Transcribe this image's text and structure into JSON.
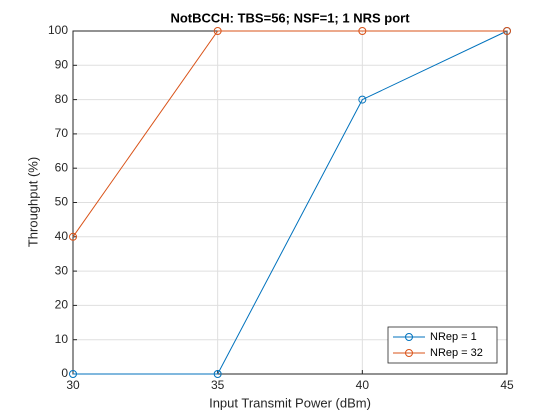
{
  "chart_data": {
    "type": "line",
    "title": "NotBCCH: TBS=56; NSF=1; 1 NRS port",
    "x_label": "Input Transmit Power (dBm)",
    "y_label": "Throughput (%)",
    "x": [
      30,
      35,
      40,
      45
    ],
    "series": [
      {
        "name": "NRep = 1",
        "color": "#0072BD",
        "values": [
          0,
          0,
          80,
          100
        ]
      },
      {
        "name": "NRep = 32",
        "color": "#D95319",
        "values": [
          40,
          100,
          100,
          100
        ]
      }
    ],
    "xlim": [
      30,
      45
    ],
    "xticks": [
      30,
      35,
      40,
      45
    ],
    "ylim": [
      0,
      100
    ],
    "yticks": [
      0,
      10,
      20,
      30,
      40,
      50,
      60,
      70,
      80,
      90,
      100
    ],
    "grid": true,
    "legend_location": "southeast"
  }
}
